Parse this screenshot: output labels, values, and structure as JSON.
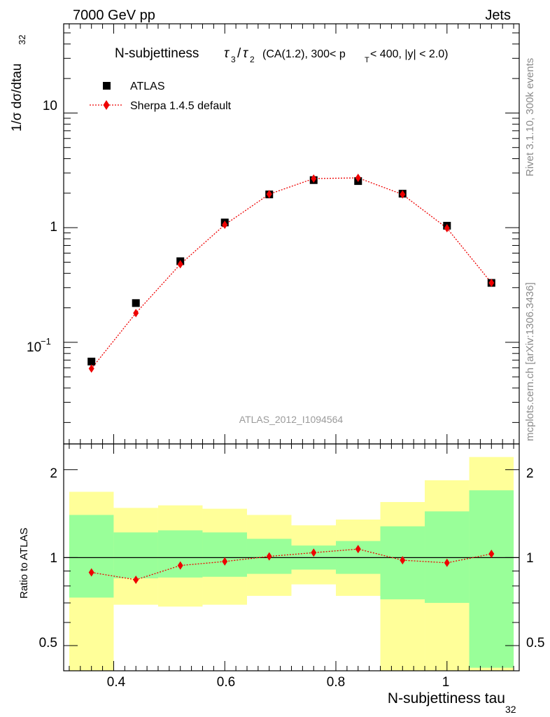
{
  "header": {
    "energy_label": "7000 GeV pp",
    "process_label": "Jets"
  },
  "side_labels": {
    "rivet": "Rivet 3.1.10,  300k events",
    "mcplots": "mcplots.cern.ch [arXiv:1306.3436]"
  },
  "main_plot": {
    "title_main": "N-subjettiness",
    "title_detail": "(CA(1.2), 300< p",
    "title_detail_sub": "T",
    "title_detail_tail": " < 400, |y| < 2.0)",
    "ylabel": "1/σ dσ/dtau",
    "ylabel_sub": "32",
    "analysis_id": "ATLAS_2012_I1094564",
    "y_tick_labels": [
      "10",
      "1"
    ],
    "y_tick_power_base": "10",
    "y_tick_power_exp": "−1",
    "legend": [
      {
        "label": "ATLAS",
        "marker": "square",
        "color": "#000000"
      },
      {
        "label": "Sherpa 1.4.5 default",
        "marker": "diamond",
        "color": "#ee0000"
      }
    ]
  },
  "ratio_plot": {
    "ylabel": "Ratio to ATLAS",
    "y_tick_labels": [
      "2",
      "1",
      "0.5"
    ]
  },
  "x_axis": {
    "label": "N-subjettiness tau",
    "label_sub": "32",
    "tick_labels": [
      "0.4",
      "0.6",
      "0.8",
      "1"
    ]
  },
  "chart_data": {
    "type": "scatter",
    "title": "N-subjettiness τ3/τ2 (CA(1.2), 300< pT < 400, |y| < 2.0)",
    "xlabel": "N-subjettiness tau32",
    "ylabel": "1/σ dσ/dtau32",
    "xlim": [
      0.31,
      1.13
    ],
    "ylim": [
      0.013,
      60
    ],
    "yscale": "log",
    "bin_edges": [
      0.32,
      0.4,
      0.48,
      0.56,
      0.64,
      0.72,
      0.8,
      0.88,
      0.96,
      1.04,
      1.12
    ],
    "x": [
      0.36,
      0.44,
      0.52,
      0.6,
      0.68,
      0.76,
      0.84,
      0.92,
      1.0,
      1.08
    ],
    "series": [
      {
        "name": "ATLAS",
        "values": [
          0.068,
          0.22,
          0.51,
          1.11,
          1.95,
          2.6,
          2.55,
          1.98,
          1.04,
          0.33
        ]
      },
      {
        "name": "Sherpa 1.4.5 default",
        "values": [
          0.059,
          0.18,
          0.48,
          1.06,
          1.96,
          2.68,
          2.72,
          1.95,
          0.99,
          0.33
        ]
      }
    ],
    "ratio": {
      "ylabel": "Ratio to ATLAS",
      "ylim": [
        0.41,
        2.45
      ],
      "yscale": "log",
      "sherpa_over_atlas": [
        0.89,
        0.84,
        0.94,
        0.97,
        1.01,
        1.04,
        1.07,
        0.98,
        0.96,
        1.03
      ],
      "band_inner_low": [
        0.73,
        0.85,
        0.855,
        0.86,
        0.88,
        0.91,
        0.88,
        0.72,
        0.7,
        0.42
      ],
      "band_inner_high": [
        1.4,
        1.22,
        1.24,
        1.22,
        1.16,
        1.1,
        1.14,
        1.28,
        1.44,
        1.7
      ],
      "band_outer_low": [
        0.3,
        0.69,
        0.68,
        0.69,
        0.74,
        0.81,
        0.74,
        0.4,
        0.39,
        0.3
      ],
      "band_outer_high": [
        1.68,
        1.48,
        1.51,
        1.47,
        1.4,
        1.29,
        1.35,
        1.55,
        1.84,
        2.21
      ]
    }
  }
}
